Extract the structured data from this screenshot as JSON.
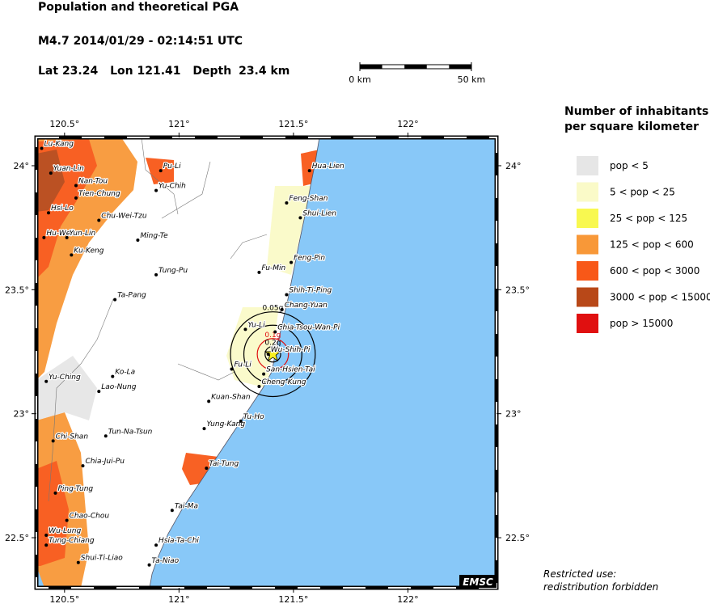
{
  "header": {
    "title": "Population and theoretical PGA",
    "event": "M4.7  2014/01/29 - 02:14:51 UTC",
    "epicenter": {
      "lat_label": "Lat",
      "lat": 23.24,
      "lon_label": "Lon",
      "lon": 121.41,
      "depth_label": "Depth",
      "depth": 23.4,
      "depth_unit": "km"
    }
  },
  "scale_bar": {
    "ticks": [
      {
        "value": 0,
        "label": "0 km"
      },
      {
        "value": 50,
        "label": "50 km"
      }
    ]
  },
  "map": {
    "xlim": [
      120.377,
      122.387
    ],
    "ylim": [
      22.298,
      24.114
    ],
    "xticks": [
      {
        "value": 120.5,
        "label": "120.5°"
      },
      {
        "value": 121,
        "label": "121°"
      },
      {
        "value": 121.5,
        "label": "121.5°"
      },
      {
        "value": 122,
        "label": "122°"
      }
    ],
    "yticks": [
      {
        "value": 22.5,
        "label": "22.5°"
      },
      {
        "value": 23,
        "label": "23°"
      },
      {
        "value": 23.5,
        "label": "23.5°"
      },
      {
        "value": 24,
        "label": "24°"
      }
    ],
    "cities": [
      {
        "name": "Lu-Kang",
        "lon": 120.4,
        "lat": 24.07
      },
      {
        "name": "Yuan-Lin",
        "lon": 120.44,
        "lat": 23.97
      },
      {
        "name": "Nan-Tou",
        "lon": 120.55,
        "lat": 23.92
      },
      {
        "name": "Tien-Chung",
        "lon": 120.55,
        "lat": 23.87
      },
      {
        "name": "Pu-Li",
        "lon": 120.92,
        "lat": 23.98
      },
      {
        "name": "Yu-Chih",
        "lon": 120.9,
        "lat": 23.9
      },
      {
        "name": "Hsi-Lo",
        "lon": 120.43,
        "lat": 23.81
      },
      {
        "name": "Chu-Wei-Tzu",
        "lon": 120.65,
        "lat": 23.78
      },
      {
        "name": "Hu-Wei",
        "lon": 120.41,
        "lat": 23.71
      },
      {
        "name": "Yun-Lin",
        "lon": 120.51,
        "lat": 23.71
      },
      {
        "name": "Ming-Te",
        "lon": 120.82,
        "lat": 23.7
      },
      {
        "name": "Ku-Keng",
        "lon": 120.53,
        "lat": 23.64
      },
      {
        "name": "Tung-Pu",
        "lon": 120.9,
        "lat": 23.56
      },
      {
        "name": "Ta-Pang",
        "lon": 120.72,
        "lat": 23.46
      },
      {
        "name": "Ko-La",
        "lon": 120.71,
        "lat": 23.15
      },
      {
        "name": "Lao-Nung",
        "lon": 120.65,
        "lat": 23.09
      },
      {
        "name": "Yu-Ching",
        "lon": 120.42,
        "lat": 23.13
      },
      {
        "name": "Chi-Shan",
        "lon": 120.45,
        "lat": 22.89
      },
      {
        "name": "Tun-Na-Tsun",
        "lon": 120.68,
        "lat": 22.91
      },
      {
        "name": "Chia-Jui-Pu",
        "lon": 120.58,
        "lat": 22.79
      },
      {
        "name": "Ping-Tung",
        "lon": 120.46,
        "lat": 22.68
      },
      {
        "name": "Chao-Chou",
        "lon": 120.51,
        "lat": 22.57
      },
      {
        "name": "Wu-Lung",
        "lon": 120.42,
        "lat": 22.51
      },
      {
        "name": "Tung-Chiang",
        "lon": 120.42,
        "lat": 22.47
      },
      {
        "name": "Shui-Ti-Liao",
        "lon": 120.56,
        "lat": 22.4
      },
      {
        "name": "Ta-Niao",
        "lon": 120.87,
        "lat": 22.39
      },
      {
        "name": "Hsia-Ta-Chi",
        "lon": 120.9,
        "lat": 22.47
      },
      {
        "name": "Tai-Ma",
        "lon": 120.97,
        "lat": 22.61
      },
      {
        "name": "Tai-Tung",
        "lon": 121.12,
        "lat": 22.78
      },
      {
        "name": "Yung-Kang",
        "lon": 121.11,
        "lat": 22.94
      },
      {
        "name": "Tu-Ho",
        "lon": 121.27,
        "lat": 22.97
      },
      {
        "name": "Kuan-Shan",
        "lon": 121.13,
        "lat": 23.05
      },
      {
        "name": "Cheng-Kung",
        "lon": 121.35,
        "lat": 23.11
      },
      {
        "name": "San-Hsien-Tai",
        "lon": 121.37,
        "lat": 23.16
      },
      {
        "name": "Fu-Li",
        "lon": 121.23,
        "lat": 23.18
      },
      {
        "name": "Wu-Shih-Pi",
        "lon": 121.39,
        "lat": 23.24
      },
      {
        "name": "Yu-Li",
        "lon": 121.29,
        "lat": 23.34
      },
      {
        "name": "Chia-Tsou-Wan-Pi",
        "lon": 121.42,
        "lat": 23.33
      },
      {
        "name": "Chang-Yuan",
        "lon": 121.45,
        "lat": 23.42
      },
      {
        "name": "Shih-Ti-Ping",
        "lon": 121.47,
        "lat": 23.48
      },
      {
        "name": "Fu-Min",
        "lon": 121.35,
        "lat": 23.57
      },
      {
        "name": "Feng-Pin",
        "lon": 121.49,
        "lat": 23.61
      },
      {
        "name": "Shui-Lien",
        "lon": 121.53,
        "lat": 23.79
      },
      {
        "name": "Feng-Shan",
        "lon": 121.47,
        "lat": 23.85
      },
      {
        "name": "Hua-Lien",
        "lon": 121.57,
        "lat": 23.98
      }
    ],
    "pga_contours": [
      {
        "label": "0.05g",
        "radius_km": 19,
        "color": "#000000"
      },
      {
        "radius_km": 13,
        "color": "#000000"
      },
      {
        "label": "0.1g",
        "radius_km": 7,
        "color": "#e01010"
      },
      {
        "label": "0.2g",
        "radius_km": 3.5,
        "color": "#000000"
      }
    ],
    "credit": "EMSC"
  },
  "legend": {
    "title": [
      "Number of inhabitants",
      "per square kilometer"
    ],
    "entries": [
      {
        "label": "pop < 5",
        "color": "#e6e6e6"
      },
      {
        "label": "5 < pop < 25",
        "color": "#fafac8"
      },
      {
        "label": "25 < pop < 125",
        "color": "#f8f850"
      },
      {
        "label": "125 < pop < 600",
        "color": "#f89838"
      },
      {
        "label": "600 < pop < 3000",
        "color": "#f85818"
      },
      {
        "label": "3000 < pop < 15000",
        "color": "#b84818"
      },
      {
        "label": "pop > 15000",
        "color": "#e01010"
      }
    ]
  },
  "notice": [
    "Restricted use:",
    "redistribution forbidden"
  ]
}
